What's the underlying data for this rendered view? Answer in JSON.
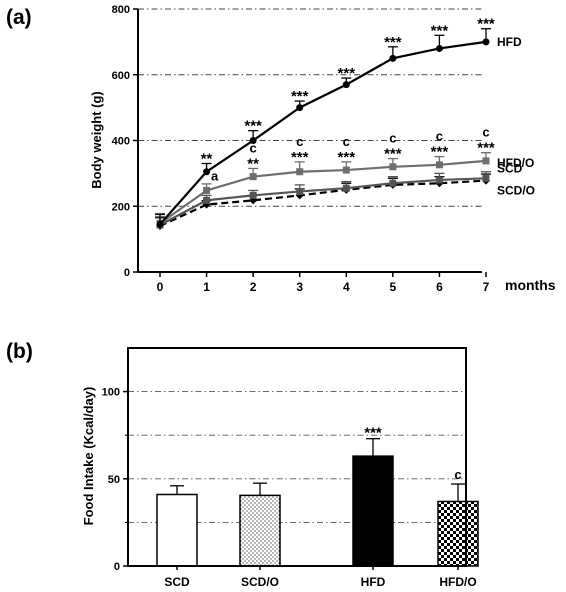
{
  "chart_data": [
    {
      "type": "line",
      "panel_label": "(a)",
      "xlabel": "months",
      "ylabel": "Body weight (g)",
      "x": [
        0,
        1,
        2,
        3,
        4,
        5,
        6,
        7
      ],
      "xlim": [
        0,
        7
      ],
      "ylim": [
        0,
        800
      ],
      "yticks": [
        0,
        200,
        400,
        600,
        800
      ],
      "grid": "horizontal dash-dot",
      "series": [
        {
          "name": "HFD",
          "color": "#000000",
          "marker": "circle",
          "line": "solid",
          "values": [
            145,
            305,
            400,
            500,
            570,
            650,
            680,
            700
          ],
          "errors": [
            30,
            25,
            30,
            20,
            20,
            35,
            40,
            40
          ],
          "annotations": [
            "",
            "**",
            "***",
            "***",
            "***",
            "***",
            "***",
            "***"
          ]
        },
        {
          "name": "HFD/O",
          "color": "#6e6e6e",
          "marker": "square",
          "line": "solid",
          "values": [
            148,
            248,
            290,
            305,
            310,
            320,
            326,
            338
          ],
          "errors": [
            30,
            20,
            25,
            30,
            25,
            25,
            25,
            25
          ],
          "annotations": [
            "",
            "a",
            "c\n**",
            "c\n***",
            "c\n***",
            "c\n***",
            "c\n***",
            "c\n***"
          ]
        },
        {
          "name": "SCD",
          "color": "#555555",
          "marker": "square",
          "line": "solid",
          "values": [
            143,
            218,
            233,
            245,
            255,
            270,
            280,
            285
          ],
          "errors": [
            25,
            15,
            15,
            20,
            20,
            20,
            20,
            20
          ],
          "annotations": []
        },
        {
          "name": "SCD/O",
          "color": "#000000",
          "marker": "diamond",
          "line": "dashed",
          "values": [
            140,
            205,
            218,
            233,
            250,
            265,
            270,
            278
          ],
          "errors": [
            25,
            12,
            15,
            20,
            20,
            20,
            20,
            20
          ],
          "annotations": []
        }
      ]
    },
    {
      "type": "bar",
      "panel_label": "(b)",
      "ylabel": "Food Intake (Kcal/day)",
      "categories": [
        "SCD",
        "SCD/O",
        "HFD",
        "HFD/O"
      ],
      "values": [
        41,
        40.5,
        63,
        37
      ],
      "errors": [
        5,
        7,
        10,
        10
      ],
      "annotations": [
        "",
        "",
        "***",
        "c"
      ],
      "fills": [
        "white",
        "dots",
        "black",
        "checker"
      ],
      "ylim": [
        0,
        125
      ],
      "yticks": [
        0,
        50,
        100
      ],
      "grid": "horizontal dash-dot"
    }
  ]
}
